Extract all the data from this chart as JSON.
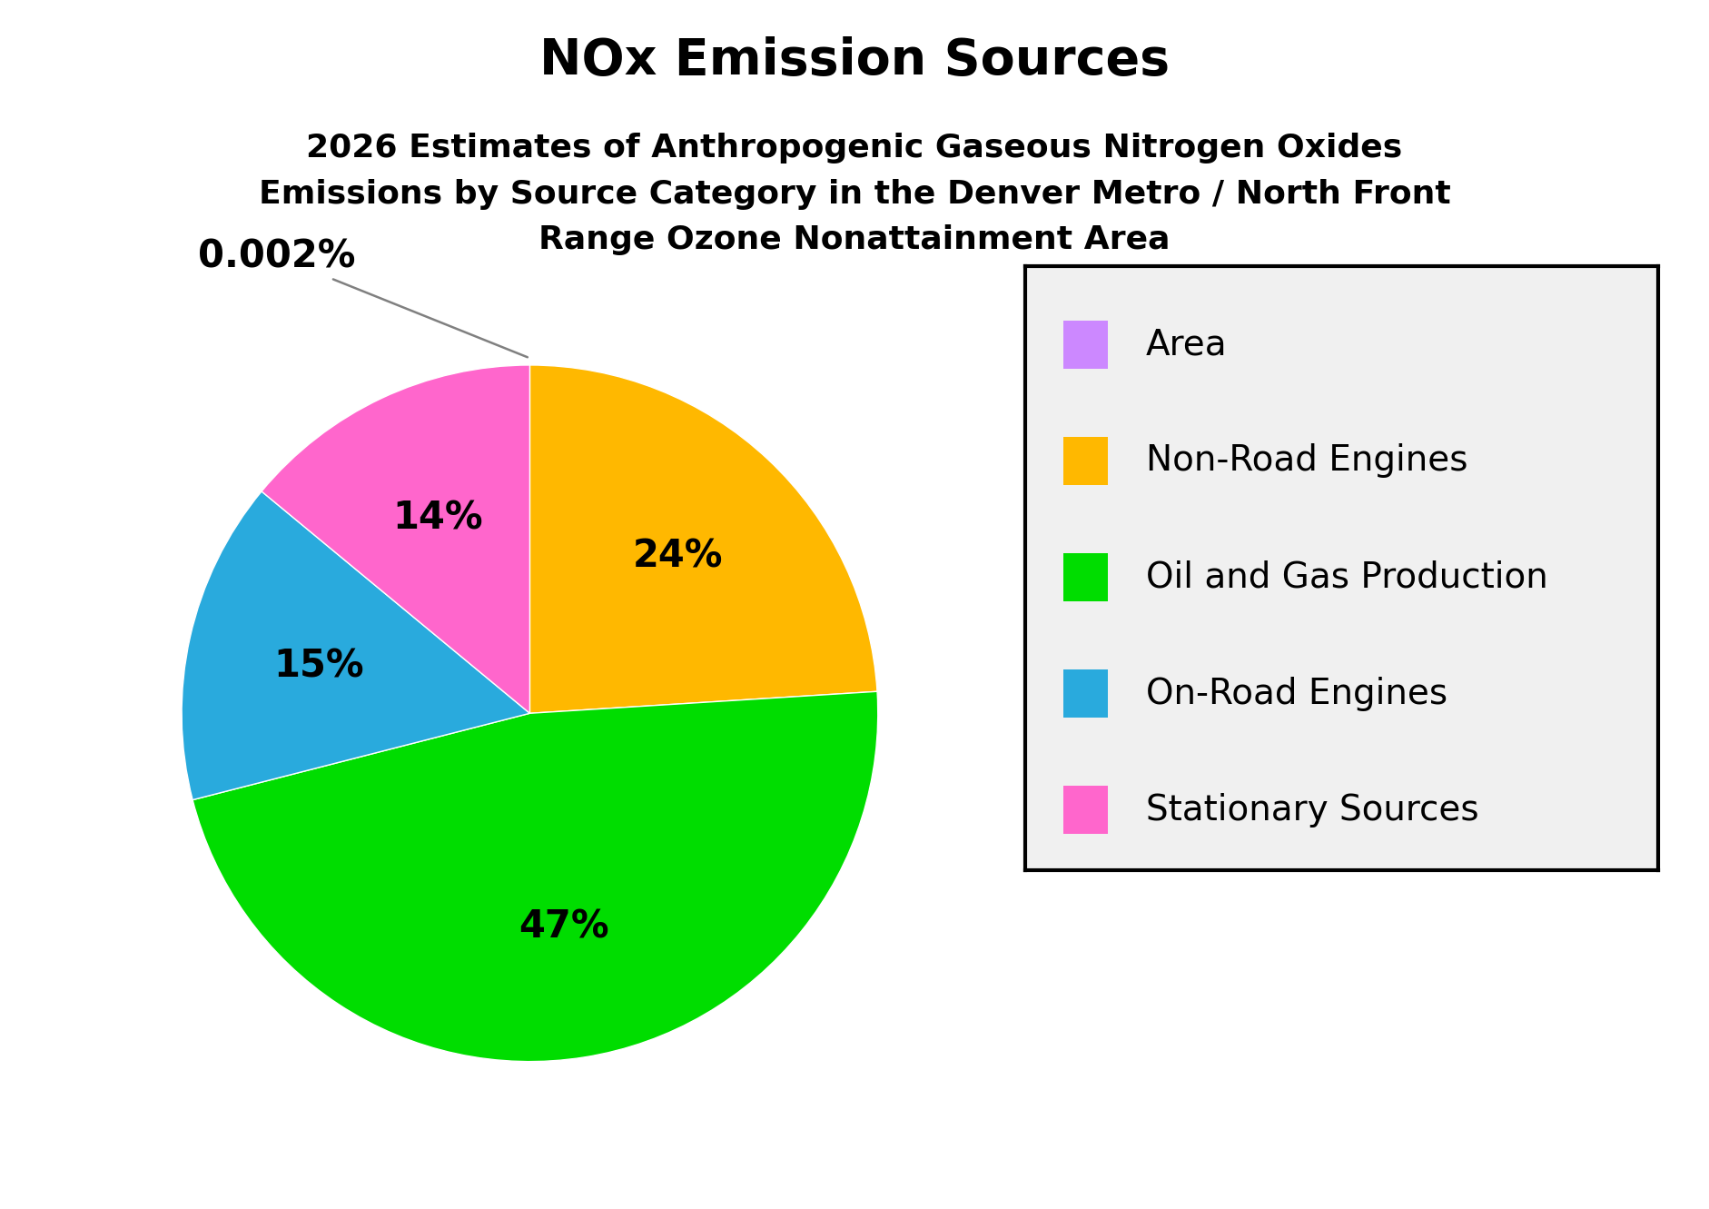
{
  "title": "NOx Emission Sources",
  "subtitle": "2026 Estimates of Anthropogenic Gaseous Nitrogen Oxides\nEmissions by Source Category in the Denver Metro / North Front\nRange Ozone Nonattainment Area",
  "labels": [
    "Area",
    "Non-Road Engines",
    "Oil and Gas Production",
    "On-Road Engines",
    "Stationary Sources"
  ],
  "values": [
    0.002,
    24,
    47,
    15,
    14
  ],
  "colors": [
    "#CC88FF",
    "#FFB800",
    "#00DD00",
    "#29AADD",
    "#FF66CC"
  ],
  "autopct_labels": [
    "0.002%",
    "24%",
    "47%",
    "15%",
    "14%"
  ],
  "title_fontsize": 40,
  "subtitle_fontsize": 26,
  "legend_fontsize": 28,
  "autopct_fontsize": 30,
  "background_color": "#FFFFFF",
  "legend_bg": "#F0F0F0"
}
